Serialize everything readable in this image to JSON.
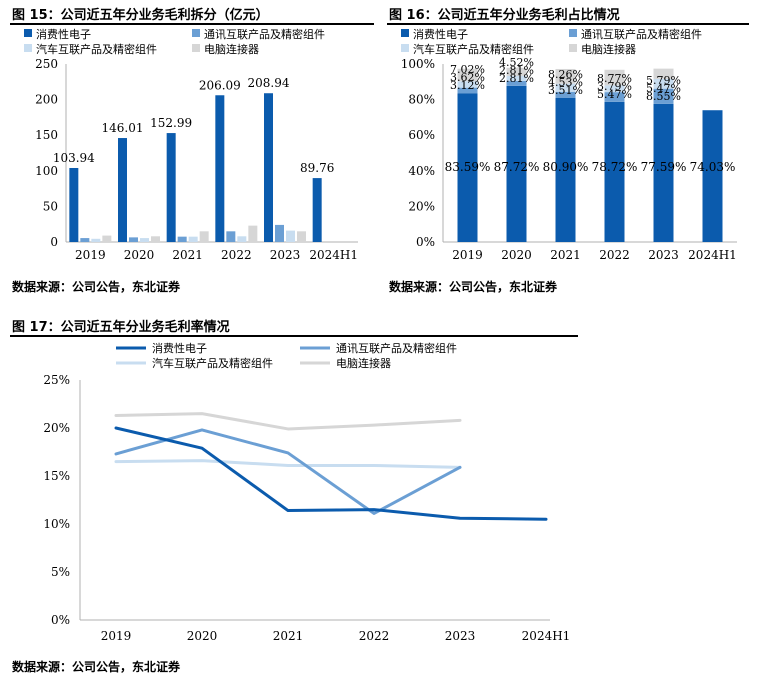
{
  "fig15": {
    "title": "图 15：公司近五年分业务毛利拆分（亿元）",
    "source": "数据来源：公司公告，东北证券"
  },
  "fig16": {
    "title": "图 16：公司近五年分业务毛利占比情况",
    "source": "数据来源：公司公告，东北证券"
  },
  "fig17": {
    "title": "图 17：公司近五年分业务毛利率情况",
    "source": "数据来源：公司公告，东北证券"
  },
  "chart_data": [
    {
      "id": "fig15",
      "type": "bar",
      "title": "图 15：公司近五年分业务毛利拆分（亿元）",
      "categories": [
        "2019",
        "2020",
        "2021",
        "2022",
        "2023",
        "2024H1"
      ],
      "ylim": [
        0,
        250
      ],
      "yticks": [
        0,
        50,
        100,
        150,
        200,
        250
      ],
      "grid": false,
      "legend": "top-left",
      "series": [
        {
          "name": "消费性电子",
          "color": "#0b5bad",
          "values": [
            103.94,
            146.01,
            152.99,
            206.09,
            208.94,
            89.76
          ],
          "labels": [
            "103.94",
            "146.01",
            "152.99",
            "206.09",
            "208.94",
            "89.76"
          ]
        },
        {
          "name": "通讯互联产品及精密组件",
          "color": "#6b9fd4",
          "values": [
            5.5,
            6.5,
            7.5,
            15,
            24,
            0
          ]
        },
        {
          "name": "汽车互联产品及精密组件",
          "color": "#c8ddf0",
          "values": [
            4.5,
            5.5,
            7.5,
            8,
            16,
            0
          ]
        },
        {
          "name": "电脑连接器",
          "color": "#d6d6d6",
          "values": [
            9,
            8,
            15,
            23,
            15,
            0
          ]
        }
      ]
    },
    {
      "id": "fig16",
      "type": "bar",
      "stacked": true,
      "title": "图 16：公司近五年分业务毛利占比情况",
      "categories": [
        "2019",
        "2020",
        "2021",
        "2022",
        "2023",
        "2024H1"
      ],
      "ylim": [
        0,
        100
      ],
      "yticks": [
        "0%",
        "20%",
        "40%",
        "60%",
        "80%",
        "100%"
      ],
      "grid": false,
      "legend": "top-left",
      "series": [
        {
          "name": "消费性电子",
          "color": "#0b5bad",
          "values": [
            83.59,
            87.72,
            80.9,
            78.72,
            77.59,
            74.03
          ],
          "labels": [
            "83.59%",
            "87.72%",
            "80.90%",
            "78.72%",
            "77.59%",
            "74.03%"
          ]
        },
        {
          "name": "通讯互联产品及精密组件",
          "color": "#6b9fd4",
          "values": [
            3.12,
            2.81,
            3.51,
            5.47,
            8.55,
            0
          ],
          "labels": [
            "3.12%",
            "2.81%",
            "3.51%",
            "5.47%",
            "8.55%",
            ""
          ]
        },
        {
          "name": "汽车互联产品及精密组件",
          "color": "#c8ddf0",
          "values": [
            3.62,
            2.81,
            4.53,
            3.79,
            5.47,
            0
          ],
          "labels": [
            "3.62%",
            "2.81%",
            "4.53%",
            "3.79%",
            "5.47%",
            ""
          ]
        },
        {
          "name": "电脑连接器",
          "color": "#d6d6d6",
          "values": [
            7.02,
            4.52,
            8.26,
            8.77,
            5.79,
            0
          ],
          "labels": [
            "7.02%",
            "4.52%",
            "8.26%",
            "8.77%",
            "5.79%",
            ""
          ]
        }
      ]
    },
    {
      "id": "fig17",
      "type": "line",
      "title": "图 17：公司近五年分业务毛利率情况",
      "categories": [
        "2019",
        "2020",
        "2021",
        "2022",
        "2023",
        "2024H1"
      ],
      "ylim": [
        0,
        25
      ],
      "yticks": [
        "0%",
        "5%",
        "10%",
        "15%",
        "20%",
        "25%"
      ],
      "grid": false,
      "legend": "top",
      "series": [
        {
          "name": "消费性电子",
          "color": "#0b5bad",
          "values": [
            20.0,
            17.9,
            11.4,
            11.5,
            10.6,
            10.5
          ]
        },
        {
          "name": "通讯互联产品及精密组件",
          "color": "#6b9fd4",
          "values": [
            17.3,
            19.8,
            17.4,
            11.1,
            15.9,
            null
          ]
        },
        {
          "name": "汽车互联产品及精密组件",
          "color": "#c8ddf0",
          "values": [
            16.5,
            16.6,
            16.1,
            16.1,
            15.9,
            null
          ]
        },
        {
          "name": "电脑连接器",
          "color": "#d6d6d6",
          "values": [
            21.3,
            21.5,
            19.9,
            20.3,
            20.8,
            null
          ]
        }
      ]
    }
  ]
}
